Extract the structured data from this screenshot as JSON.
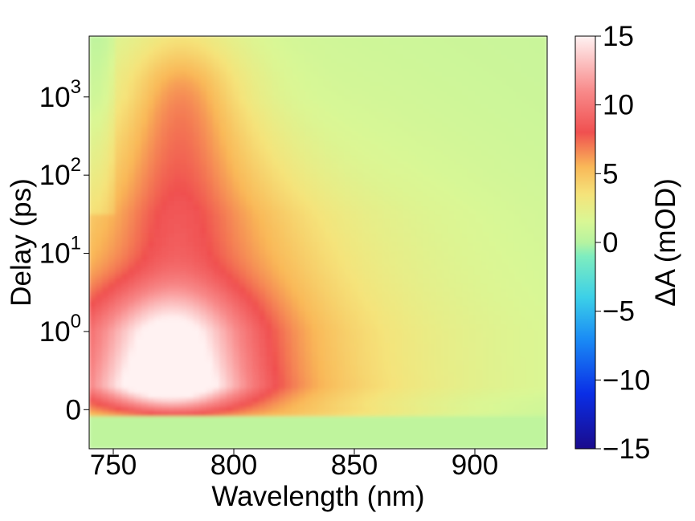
{
  "chart_data": {
    "type": "heatmap",
    "title": "",
    "xlabel": "Wavelength (nm)",
    "ylabel": "Delay (ps)",
    "x_range": [
      740,
      930
    ],
    "x_ticks": [
      750,
      800,
      850,
      900
    ],
    "y_scale": "symlog",
    "y_range": [
      -0.5,
      6000
    ],
    "y_ticks": [
      {
        "value": 0,
        "label": "0"
      },
      {
        "value": 1,
        "label": "10",
        "exp": "0"
      },
      {
        "value": 10,
        "label": "10",
        "exp": "1"
      },
      {
        "value": 100,
        "label": "10",
        "exp": "2"
      },
      {
        "value": 1000,
        "label": "10",
        "exp": "3"
      }
    ],
    "colorbar": {
      "label": "ΔA (mOD)",
      "colormap": "rainbow-like (navy → blue → cyan → green → yellow → orange → red → light pink)",
      "range": [
        -15,
        15
      ],
      "ticks": [
        "−15",
        "−10",
        "−5",
        "0",
        "5",
        "10",
        "15"
      ],
      "tick_values": [
        -15,
        -10,
        -5,
        0,
        5,
        10,
        15
      ],
      "stops": [
        {
          "value": -15,
          "color": "#1a0b8c"
        },
        {
          "value": -11,
          "color": "#0a2ee6"
        },
        {
          "value": -7,
          "color": "#1a8cf5"
        },
        {
          "value": -4,
          "color": "#3cd0e8"
        },
        {
          "value": -1,
          "color": "#7eedbf"
        },
        {
          "value": 0,
          "color": "#b6f3a0"
        },
        {
          "value": 1.5,
          "color": "#d9f795"
        },
        {
          "value": 3.5,
          "color": "#f5e37a"
        },
        {
          "value": 5.5,
          "color": "#f9b858"
        },
        {
          "value": 8,
          "color": "#f05050"
        },
        {
          "value": 11,
          "color": "#f88a8a"
        },
        {
          "value": 15,
          "color": "#fff2f2"
        }
      ]
    },
    "features": [
      {
        "name": "pre-time-zero background",
        "delay_range": [
          -0.5,
          -0.1
        ],
        "wavelength_range": [
          740,
          930
        ],
        "value": 0.5
      },
      {
        "name": "early-time excited-state absorption",
        "peak_wavelength": 772,
        "peak_delay": 0.6,
        "peak_value": 12
      },
      {
        "name": "long-lived absorption band",
        "wavelength_range": [
          760,
          800
        ],
        "delay_range": [
          1,
          6000
        ],
        "value": 3
      },
      {
        "name": "late-time red edge",
        "wavelength_range": [
          850,
          930
        ],
        "delay_range": [
          100,
          6000
        ],
        "value": 0.5
      }
    ]
  }
}
